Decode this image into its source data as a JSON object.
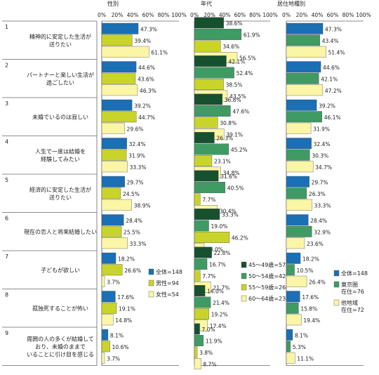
{
  "chart_data": [
    {
      "type": "bar",
      "title": "性別",
      "xlim": [
        0,
        100
      ],
      "x_ticks": [
        "0%",
        "20%",
        "40%",
        "60%",
        "80%",
        "100%"
      ],
      "series": [
        {
          "name": "全体=148",
          "color": "#1a6fb5",
          "values": [
            47.3,
            44.6,
            39.2,
            32.4,
            29.7,
            28.4,
            18.2,
            17.6,
            8.1
          ]
        },
        {
          "name": "男性=94",
          "color": "#c9d42a",
          "values": [
            39.4,
            43.6,
            44.7,
            31.9,
            24.5,
            25.5,
            26.6,
            19.1,
            10.6
          ]
        },
        {
          "name": "女性=54",
          "color": "#fbf5a6",
          "values": [
            61.1,
            46.3,
            29.6,
            33.3,
            38.9,
            33.3,
            3.7,
            14.8,
            3.7
          ]
        }
      ]
    },
    {
      "type": "bar",
      "title": "年代",
      "xlim": [
        0,
        100
      ],
      "x_ticks": [
        "0%",
        "20%",
        "40%",
        "60%",
        "80%",
        "100%"
      ],
      "series": [
        {
          "name": "45～49歳=57",
          "color": "#17502e",
          "values": [
            38.6,
            42.1,
            36.8,
            26.3,
            31.6,
            33.3,
            22.8,
            14.0,
            7.0
          ]
        },
        {
          "name": "50～54歳=42",
          "color": "#3f9a63",
          "values": [
            61.9,
            52.4,
            47.6,
            45.2,
            40.5,
            19.0,
            16.7,
            21.4,
            11.9
          ]
        },
        {
          "name": "55～59歳=26",
          "color": "#c9d42a",
          "values": [
            34.6,
            38.5,
            30.8,
            23.1,
            7.7,
            46.2,
            7.7,
            19.2,
            3.8
          ]
        },
        {
          "name": "60～64歳=23",
          "color": "#fbf5a6",
          "values": [
            56.5,
            43.5,
            39.1,
            34.8,
            30.4,
            13.0,
            21.7,
            17.4,
            8.7
          ]
        }
      ]
    },
    {
      "type": "bar",
      "title": "居住地種別",
      "xlim": [
        0,
        100
      ],
      "x_ticks": [
        "0%",
        "20%",
        "40%",
        "60%",
        "80%",
        "100%"
      ],
      "series": [
        {
          "name": "全体=148",
          "color": "#1a6fb5",
          "values": [
            47.3,
            44.6,
            39.2,
            32.4,
            29.7,
            28.4,
            18.2,
            17.6,
            8.1
          ]
        },
        {
          "name": "東京圏\n在住=76",
          "color": "#3f9a63",
          "values": [
            43.4,
            42.1,
            46.1,
            30.3,
            26.3,
            32.9,
            10.5,
            15.8,
            5.3
          ]
        },
        {
          "name": "他地域\n在住=72",
          "color": "#fbf5a6",
          "values": [
            51.4,
            47.2,
            31.9,
            34.7,
            33.3,
            23.6,
            26.4,
            19.4,
            11.1
          ]
        }
      ]
    }
  ],
  "categories": [
    {
      "num": "1",
      "label": "精神的に安定した生活が\n送りたい"
    },
    {
      "num": "2",
      "label": "パートナーと楽しい生活が\n過ごしたい"
    },
    {
      "num": "3",
      "label": "未婚でいるのは寂しい"
    },
    {
      "num": "4",
      "label": "人生で一度は結婚を\n経験してみたい"
    },
    {
      "num": "5",
      "label": "経済的に安定した生活が\n送りたい"
    },
    {
      "num": "6",
      "label": "現在の恋人と将来結婚したい"
    },
    {
      "num": "7",
      "label": "子どもが欲しい"
    },
    {
      "num": "8",
      "label": "孤独死することが怖い"
    },
    {
      "num": "9",
      "label": "周囲の人の多くが結婚して\nおり、未婚のままで\nいることに引け目を感じる"
    }
  ]
}
